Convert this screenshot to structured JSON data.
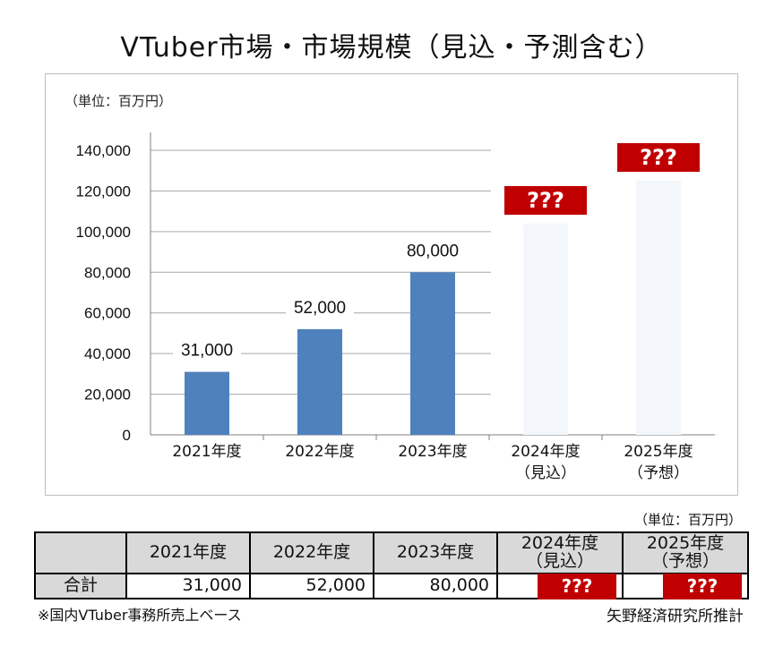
{
  "title": "VTuber市場・市場規模（見込・予測含む）",
  "chart_unit": "（単位：百万円）",
  "table_unit": "（単位：百万円）",
  "footnote": "※国内VTuber事務所売上ベース",
  "source": "矢野経済研究所推計",
  "colors": {
    "bar": "#4f81bd",
    "bar_placeholder": "#f3f7fb",
    "placeholder_box": "#c00000"
  },
  "chart_data": {
    "type": "bar",
    "categories": [
      {
        "line1": "2021年度",
        "line2": ""
      },
      {
        "line1": "2022年度",
        "line2": ""
      },
      {
        "line1": "2023年度",
        "line2": ""
      },
      {
        "line1": "2024年度",
        "line2": "（見込）"
      },
      {
        "line1": "2025年度",
        "line2": "（予想）"
      }
    ],
    "values": [
      31000,
      52000,
      80000,
      104000,
      125000
    ],
    "data_labels": [
      "31,000",
      "52,000",
      "80,000",
      "???",
      "???"
    ],
    "placeholder_flags": [
      false,
      false,
      false,
      true,
      true
    ],
    "ylim": [
      0,
      140000
    ],
    "yticks": [
      0,
      20000,
      40000,
      60000,
      80000,
      100000,
      120000,
      140000
    ],
    "ytick_labels": [
      "0",
      "20,000",
      "40,000",
      "60,000",
      "80,000",
      "100,000",
      "120,000",
      "140,000"
    ],
    "grid": true,
    "xlabel": "",
    "ylabel": ""
  },
  "table": {
    "headers": [
      "",
      "2021年度",
      "2022年度",
      "2023年度",
      "2024年度\n（見込）",
      "2025年度\n（予想）"
    ],
    "row": {
      "label": "合計",
      "values": [
        "31,000",
        "52,000",
        "80,000",
        "???",
        "???"
      ]
    }
  }
}
